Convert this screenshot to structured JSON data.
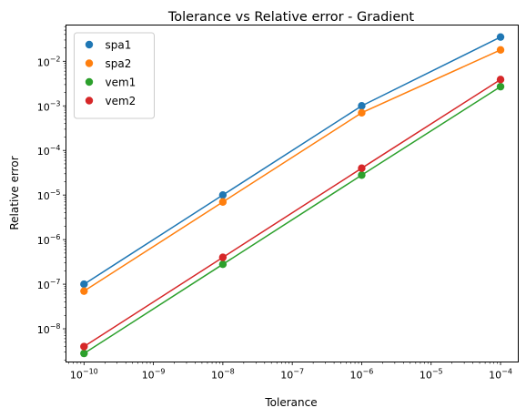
{
  "chart_data": {
    "type": "line",
    "title": "Tolerance vs Relative error - Gradient",
    "xlabel": "Tolerance",
    "ylabel": "Relative error",
    "xscale": "log",
    "yscale": "log",
    "xlim": [
      5.5e-11,
      0.00018
    ],
    "ylim": [
      1.8e-09,
      0.065
    ],
    "grid": false,
    "legend_position": "upper-left",
    "x": [
      1e-10,
      1e-08,
      1e-06,
      0.0001
    ],
    "x_ticks": [
      {
        "value": 1e-10,
        "base": "10",
        "exp": "−10"
      },
      {
        "value": 1e-09,
        "base": "10",
        "exp": "−9"
      },
      {
        "value": 1e-08,
        "base": "10",
        "exp": "−8"
      },
      {
        "value": 1e-07,
        "base": "10",
        "exp": "−7"
      },
      {
        "value": 1e-06,
        "base": "10",
        "exp": "−6"
      },
      {
        "value": 1e-05,
        "base": "10",
        "exp": "−5"
      },
      {
        "value": 0.0001,
        "base": "10",
        "exp": "−4"
      }
    ],
    "y_ticks": [
      {
        "value": 1e-08,
        "base": "10",
        "exp": "−8"
      },
      {
        "value": 1e-07,
        "base": "10",
        "exp": "−7"
      },
      {
        "value": 1e-06,
        "base": "10",
        "exp": "−6"
      },
      {
        "value": 1e-05,
        "base": "10",
        "exp": "−5"
      },
      {
        "value": 0.0001,
        "base": "10",
        "exp": "−4"
      },
      {
        "value": 0.001,
        "base": "10",
        "exp": "−3"
      },
      {
        "value": 0.01,
        "base": "10",
        "exp": "−2"
      }
    ],
    "series": [
      {
        "name": "spa1",
        "color": "#1f77b4",
        "values": [
          1e-07,
          1e-05,
          0.001,
          0.035
        ]
      },
      {
        "name": "spa2",
        "color": "#ff7f0e",
        "values": [
          7e-08,
          7e-06,
          0.0007,
          0.018
        ]
      },
      {
        "name": "vem1",
        "color": "#2ca02c",
        "values": [
          2.8e-09,
          2.8e-07,
          2.8e-05,
          0.0027
        ]
      },
      {
        "name": "vem2",
        "color": "#d62728",
        "values": [
          4e-09,
          4e-07,
          4e-05,
          0.0039
        ]
      }
    ]
  }
}
